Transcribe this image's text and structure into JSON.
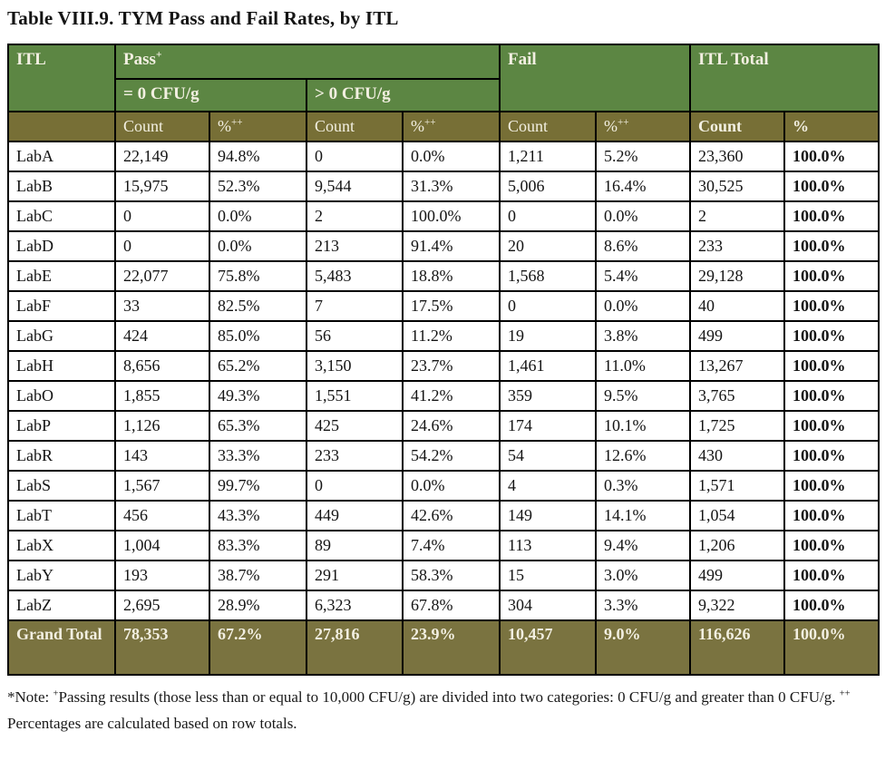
{
  "title": "Table VIII.9. TYM Pass and Fail Rates, by ITL",
  "colors": {
    "header_green": "#5C8643",
    "header_olive": "#776F36",
    "grand_total_olive": "#7A7340",
    "header_text": "#F2EFE1",
    "border": "#000000",
    "body_text": "#141414"
  },
  "table": {
    "header": {
      "itl": "ITL",
      "pass": "Pass",
      "pass_sup": "+",
      "fail": "Fail",
      "itl_total": "ITL Total",
      "eq_zero": "= 0 CFU/g",
      "gt_zero": "> 0 CFU/g",
      "count": "Count",
      "pct": "%",
      "pct_sup": "++"
    },
    "row_keys": [
      "itl",
      "pass0_count",
      "pass0_pct",
      "passgt0_count",
      "passgt0_pct",
      "fail_count",
      "fail_pct",
      "total_count",
      "total_pct"
    ],
    "rows": [
      {
        "itl": "LabA",
        "pass0_count": "22,149",
        "pass0_pct": "94.8%",
        "passgt0_count": "0",
        "passgt0_pct": "0.0%",
        "fail_count": "1,211",
        "fail_pct": "5.2%",
        "total_count": "23,360",
        "total_pct": "100.0%"
      },
      {
        "itl": "LabB",
        "pass0_count": "15,975",
        "pass0_pct": "52.3%",
        "passgt0_count": "9,544",
        "passgt0_pct": "31.3%",
        "fail_count": "5,006",
        "fail_pct": "16.4%",
        "total_count": "30,525",
        "total_pct": "100.0%"
      },
      {
        "itl": "LabC",
        "pass0_count": "0",
        "pass0_pct": "0.0%",
        "passgt0_count": "2",
        "passgt0_pct": "100.0%",
        "fail_count": "0",
        "fail_pct": "0.0%",
        "total_count": "2",
        "total_pct": "100.0%"
      },
      {
        "itl": "LabD",
        "pass0_count": "0",
        "pass0_pct": "0.0%",
        "passgt0_count": "213",
        "passgt0_pct": "91.4%",
        "fail_count": "20",
        "fail_pct": "8.6%",
        "total_count": "233",
        "total_pct": "100.0%"
      },
      {
        "itl": "LabE",
        "pass0_count": "22,077",
        "pass0_pct": "75.8%",
        "passgt0_count": "5,483",
        "passgt0_pct": "18.8%",
        "fail_count": "1,568",
        "fail_pct": "5.4%",
        "total_count": "29,128",
        "total_pct": "100.0%"
      },
      {
        "itl": "LabF",
        "pass0_count": "33",
        "pass0_pct": "82.5%",
        "passgt0_count": "7",
        "passgt0_pct": "17.5%",
        "fail_count": "0",
        "fail_pct": "0.0%",
        "total_count": "40",
        "total_pct": "100.0%"
      },
      {
        "itl": "LabG",
        "pass0_count": "424",
        "pass0_pct": "85.0%",
        "passgt0_count": "56",
        "passgt0_pct": "11.2%",
        "fail_count": "19",
        "fail_pct": "3.8%",
        "total_count": "499",
        "total_pct": "100.0%"
      },
      {
        "itl": "LabH",
        "pass0_count": "8,656",
        "pass0_pct": "65.2%",
        "passgt0_count": "3,150",
        "passgt0_pct": "23.7%",
        "fail_count": "1,461",
        "fail_pct": "11.0%",
        "total_count": "13,267",
        "total_pct": "100.0%"
      },
      {
        "itl": "LabO",
        "pass0_count": "1,855",
        "pass0_pct": "49.3%",
        "passgt0_count": "1,551",
        "passgt0_pct": "41.2%",
        "fail_count": "359",
        "fail_pct": "9.5%",
        "total_count": "3,765",
        "total_pct": "100.0%"
      },
      {
        "itl": "LabP",
        "pass0_count": "1,126",
        "pass0_pct": "65.3%",
        "passgt0_count": "425",
        "passgt0_pct": "24.6%",
        "fail_count": "174",
        "fail_pct": "10.1%",
        "total_count": "1,725",
        "total_pct": "100.0%"
      },
      {
        "itl": "LabR",
        "pass0_count": "143",
        "pass0_pct": "33.3%",
        "passgt0_count": "233",
        "passgt0_pct": "54.2%",
        "fail_count": "54",
        "fail_pct": "12.6%",
        "total_count": "430",
        "total_pct": "100.0%"
      },
      {
        "itl": "LabS",
        "pass0_count": "1,567",
        "pass0_pct": "99.7%",
        "passgt0_count": "0",
        "passgt0_pct": "0.0%",
        "fail_count": "4",
        "fail_pct": "0.3%",
        "total_count": "1,571",
        "total_pct": "100.0%"
      },
      {
        "itl": "LabT",
        "pass0_count": "456",
        "pass0_pct": "43.3%",
        "passgt0_count": "449",
        "passgt0_pct": "42.6%",
        "fail_count": "149",
        "fail_pct": "14.1%",
        "total_count": "1,054",
        "total_pct": "100.0%"
      },
      {
        "itl": "LabX",
        "pass0_count": "1,004",
        "pass0_pct": "83.3%",
        "passgt0_count": "89",
        "passgt0_pct": "7.4%",
        "fail_count": "113",
        "fail_pct": "9.4%",
        "total_count": "1,206",
        "total_pct": "100.0%"
      },
      {
        "itl": "LabY",
        "pass0_count": "193",
        "pass0_pct": "38.7%",
        "passgt0_count": "291",
        "passgt0_pct": "58.3%",
        "fail_count": "15",
        "fail_pct": "3.0%",
        "total_count": "499",
        "total_pct": "100.0%"
      },
      {
        "itl": "LabZ",
        "pass0_count": "2,695",
        "pass0_pct": "28.9%",
        "passgt0_count": "6,323",
        "passgt0_pct": "67.8%",
        "fail_count": "304",
        "fail_pct": "3.3%",
        "total_count": "9,322",
        "total_pct": "100.0%"
      }
    ],
    "grand_total": {
      "itl": "Grand Total",
      "pass0_count": "78,353",
      "pass0_pct": "67.2%",
      "passgt0_count": "27,816",
      "passgt0_pct": "23.9%",
      "fail_count": "10,457",
      "fail_pct": "9.0%",
      "total_count": "116,626",
      "total_pct": "100.0%"
    }
  },
  "footnote": {
    "part1": "*Note: ",
    "sup1": "+",
    "part2": "Passing results (those less than or equal to 10,000 CFU/g) are divided into two categories: 0 CFU/g and greater than 0 CFU/g. ",
    "sup2": "++",
    "part3": " Percentages are calculated based on row totals."
  }
}
